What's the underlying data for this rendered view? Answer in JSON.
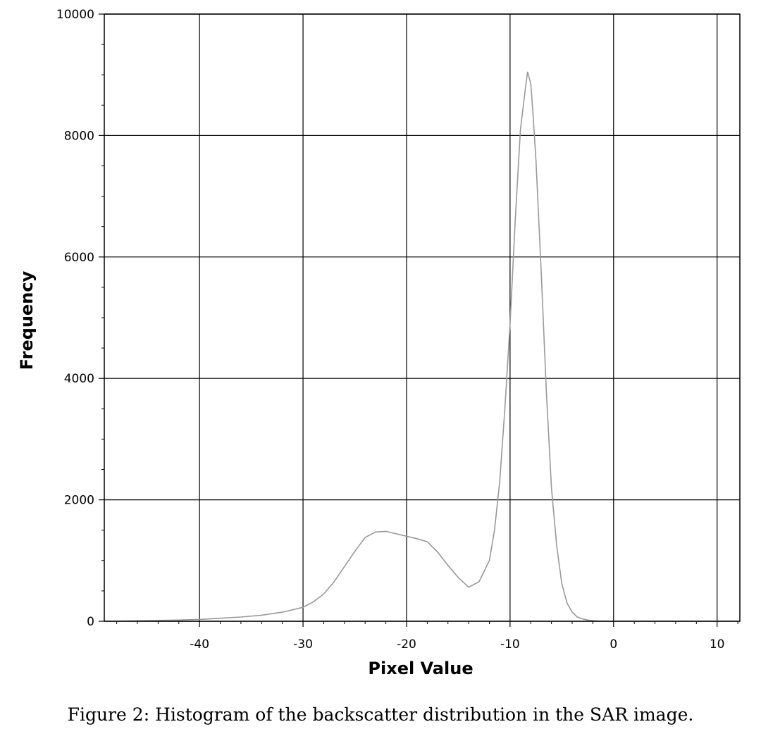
{
  "caption": "Figure 2: Histogram of the backscatter distribution in the SAR image.",
  "chart_data": {
    "type": "line",
    "xlabel": "Pixel Value",
    "ylabel": "Frequency",
    "xlim": [
      -49.2,
      12.2
    ],
    "ylim": [
      0,
      10000
    ],
    "x_ticks": [
      -40,
      -30,
      -20,
      -10,
      0,
      10
    ],
    "y_ticks": [
      0,
      2000,
      4000,
      6000,
      8000,
      10000
    ],
    "x_tick_labels": [
      "-40",
      "-30",
      "-20",
      "-10",
      "0",
      "10"
    ],
    "y_tick_labels": [
      "0",
      "2000",
      "4000",
      "6000",
      "8000",
      "10000"
    ],
    "grid": true,
    "series_color": "#999999",
    "series": [
      {
        "x": [
          -49,
          -45,
          -42,
          -40,
          -38,
          -36,
          -34,
          -32,
          -30,
          -29,
          -28,
          -27,
          -26,
          -25,
          -24,
          -23,
          -22,
          -21,
          -20,
          -19,
          -18,
          -17,
          -16,
          -15,
          -14,
          -13,
          -12,
          -11.5,
          -11,
          -10.5,
          -10,
          -9.5,
          -9,
          -8.5,
          -8.3,
          -8,
          -7.8,
          -7.5,
          -7,
          -6.5,
          -6,
          -5.5,
          -5,
          -4.5,
          -4,
          -3.5,
          -3,
          -2.5,
          -2,
          -1.5,
          -1,
          0,
          5,
          12
        ],
        "y": [
          0,
          10,
          20,
          30,
          50,
          70,
          100,
          150,
          230,
          320,
          450,
          650,
          900,
          1150,
          1380,
          1470,
          1480,
          1440,
          1400,
          1360,
          1310,
          1140,
          920,
          720,
          560,
          650,
          1000,
          1500,
          2300,
          3500,
          4900,
          6600,
          8100,
          8800,
          9050,
          8850,
          8400,
          7600,
          5800,
          3800,
          2200,
          1250,
          620,
          300,
          150,
          70,
          40,
          20,
          10,
          5,
          0,
          0,
          0,
          0
        ]
      }
    ]
  }
}
